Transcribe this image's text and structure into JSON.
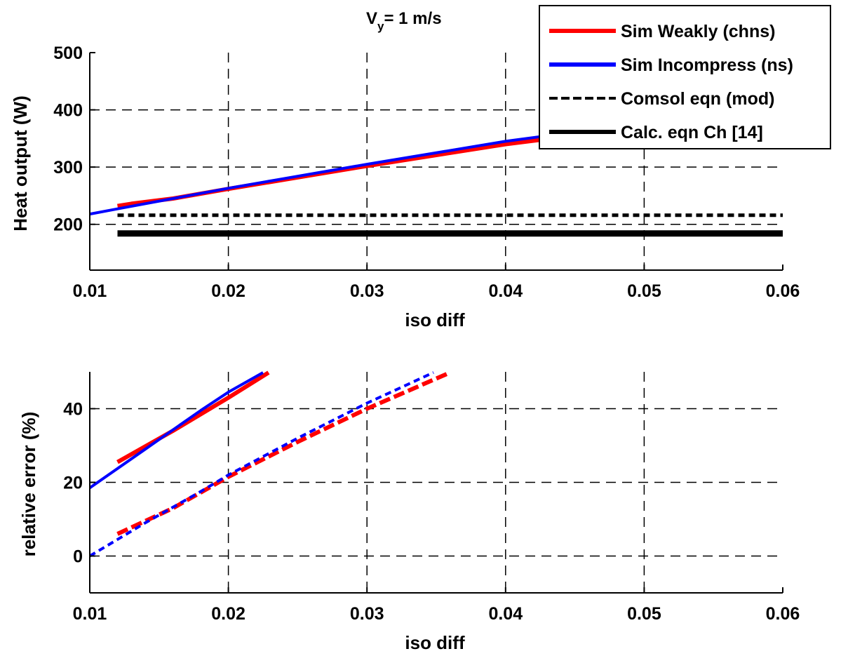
{
  "chart_data": [
    {
      "type": "line",
      "title_main": "V",
      "title_sub": "y",
      "title_rest": "= 1 m/s",
      "xlabel": "iso diff",
      "ylabel": "Heat output (W)",
      "xlim": [
        0.01,
        0.06
      ],
      "ylim": [
        120,
        500
      ],
      "xticks": [
        0.01,
        0.02,
        0.03,
        0.04,
        0.05,
        0.06
      ],
      "xtick_labels": [
        "0.01",
        "0.02",
        "0.03",
        "0.04",
        "0.05",
        "0.06"
      ],
      "yticks": [
        200,
        300,
        400,
        500
      ],
      "ytick_labels": [
        "200",
        "300",
        "400",
        "500"
      ],
      "grid": true,
      "legend_position": "top-right",
      "legend": [
        {
          "label": "Sim Weakly (chns)",
          "color": "#ff0000",
          "style": "solid"
        },
        {
          "label": "Sim Incompress (ns)",
          "color": "#0000ff",
          "style": "solid"
        },
        {
          "label": "Comsol eqn (mod)",
          "color": "#000000",
          "style": "dashed"
        },
        {
          "label": "Calc. eqn Ch [14]",
          "color": "#000000",
          "style": "solid"
        }
      ],
      "series": [
        {
          "name": "Sim Weakly (chns)",
          "color": "#ff0000",
          "style": "solid",
          "width": 6,
          "x": [
            0.012,
            0.013,
            0.016,
            0.02,
            0.03,
            0.04,
            0.044
          ],
          "y": [
            232,
            236,
            245,
            262,
            302,
            340,
            352
          ]
        },
        {
          "name": "Sim Incompress (ns)",
          "color": "#0000ff",
          "style": "solid",
          "width": 4,
          "x": [
            0.01,
            0.012,
            0.016,
            0.02,
            0.03,
            0.04,
            0.044
          ],
          "y": [
            218,
            227,
            245,
            263,
            305,
            345,
            358
          ]
        },
        {
          "name": "Comsol eqn (mod)",
          "color": "#000000",
          "style": "dashed",
          "width": 5,
          "x": [
            0.012,
            0.06
          ],
          "y": [
            216,
            216
          ]
        },
        {
          "name": "Calc. eqn Ch [14]",
          "color": "#000000",
          "style": "solid",
          "width": 9,
          "x": [
            0.012,
            0.06
          ],
          "y": [
            184,
            184
          ]
        }
      ]
    },
    {
      "type": "line",
      "xlabel": "iso diff",
      "ylabel": "relative error (%)",
      "xlim": [
        0.01,
        0.06
      ],
      "ylim": [
        -10,
        50
      ],
      "xticks": [
        0.01,
        0.02,
        0.03,
        0.04,
        0.05,
        0.06
      ],
      "xtick_labels": [
        "0.01",
        "0.02",
        "0.03",
        "0.04",
        "0.05",
        "0.06"
      ],
      "yticks": [
        0,
        20,
        40
      ],
      "ytick_labels": [
        "0",
        "20",
        "40"
      ],
      "grid": true,
      "series": [
        {
          "color": "#ff0000",
          "style": "solid",
          "width": 6,
          "x": [
            0.012,
            0.016,
            0.02,
            0.0229
          ],
          "y": [
            25.5,
            34,
            43,
            49.8
          ]
        },
        {
          "color": "#0000ff",
          "style": "solid",
          "width": 4,
          "x": [
            0.01,
            0.014,
            0.018,
            0.02,
            0.0225
          ],
          "y": [
            18.5,
            29,
            39.5,
            44.5,
            49.8
          ]
        },
        {
          "color": "#ff0000",
          "style": "dashed",
          "width": 6,
          "x": [
            0.012,
            0.016,
            0.02,
            0.025,
            0.03,
            0.036
          ],
          "y": [
            6,
            13,
            21.5,
            31,
            40,
            49.8
          ]
        },
        {
          "color": "#0000ff",
          "style": "dashed",
          "width": 4,
          "x": [
            0.01,
            0.014,
            0.018,
            0.02,
            0.025,
            0.03,
            0.0348
          ],
          "y": [
            0,
            9,
            17.5,
            22,
            32,
            41.5,
            49.8
          ]
        }
      ]
    }
  ]
}
